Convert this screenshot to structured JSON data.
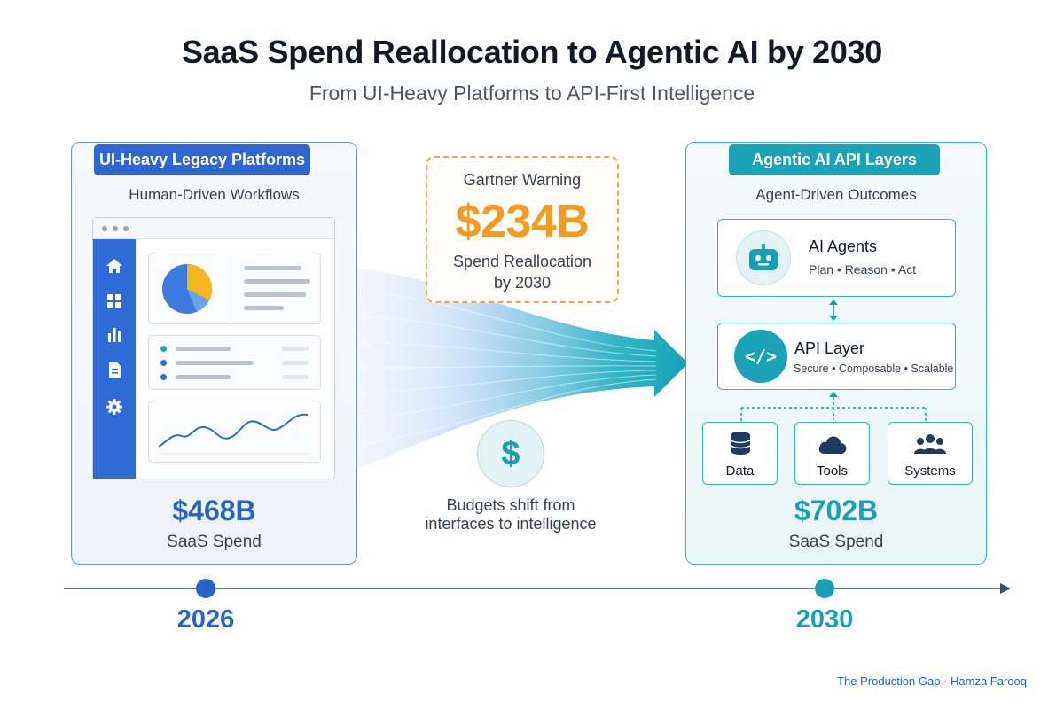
{
  "header": {
    "title": "SaaS Spend Reallocation to Agentic AI by 2030",
    "subtitle": "From UI-Heavy Platforms to API-First Intelligence"
  },
  "left_panel": {
    "label": "UI-Heavy Legacy Platforms",
    "caption": "Human-Driven Workflows",
    "amount": "$468B",
    "amount_label": "SaaS Spend",
    "sidebar_icons": [
      "home-icon",
      "grid-icon",
      "bar-chart-icon",
      "document-icon",
      "gear-icon"
    ]
  },
  "center": {
    "warning_title": "Gartner Warning",
    "warning_amount": "$234B",
    "warning_line1": "Spend Reallocation",
    "warning_line2": "by 2030",
    "dollar_symbol": "$",
    "shift_line1": "Budgets shift from",
    "shift_line2": "interfaces to intelligence"
  },
  "right_panel": {
    "label": "Agentic AI API Layers",
    "caption": "Agent-Driven Outcomes",
    "agents_title": "AI Agents",
    "agents_sub": "Plan • Reason • Act",
    "api_title": "API Layer",
    "api_sub": "Secure • Composable • Scalable",
    "api_symbol": "</>",
    "resources": [
      "Data",
      "Tools",
      "Systems"
    ],
    "amount": "$702B",
    "amount_label": "SaaS Spend"
  },
  "timeline": {
    "start": "2026",
    "end": "2030"
  },
  "footer": {
    "credit": "The Production Gap · Hamza Farooq"
  },
  "colors": {
    "blue": "#2f67d2",
    "teal": "#1aa2b6",
    "orange": "#f39a1f",
    "navy": "#1e3a5f"
  }
}
